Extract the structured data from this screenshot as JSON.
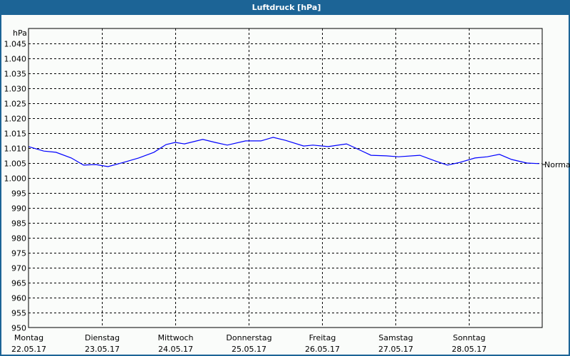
{
  "window": {
    "title": "Luftdruck [hPa]"
  },
  "chart_data": {
    "type": "line",
    "title": "Luftdruck [hPa]",
    "ylabel": "hPa",
    "ylim": [
      950,
      1050
    ],
    "yticks": [
      950,
      955,
      960,
      965,
      970,
      975,
      980,
      985,
      990,
      995,
      1000,
      1005,
      1010,
      1015,
      1020,
      1025,
      1030,
      1035,
      1040,
      1045
    ],
    "ytick_labels": [
      "950",
      "955",
      "960",
      "965",
      "970",
      "975",
      "980",
      "985",
      "990",
      "995",
      "1.000",
      "1.005",
      "1.010",
      "1.015",
      "1.020",
      "1.025",
      "1.030",
      "1.035",
      "1.040",
      "1.045"
    ],
    "xlim": [
      "2017-05-22T00:00",
      "2017-05-29T00:00"
    ],
    "xticks": [
      {
        "day": "Montag",
        "date": "22.05.17"
      },
      {
        "day": "Dienstag",
        "date": "23.05.17"
      },
      {
        "day": "Mittwoch",
        "date": "24.05.17"
      },
      {
        "day": "Donnerstag",
        "date": "25.05.17"
      },
      {
        "day": "Freitag",
        "date": "26.05.17"
      },
      {
        "day": "Samstag",
        "date": "27.05.17"
      },
      {
        "day": "Sonntag",
        "date": "28.05.17"
      }
    ],
    "grid": true,
    "reference_line": {
      "label": "Normal",
      "value": 1005
    },
    "series": [
      {
        "color": "#0000ff",
        "points": [
          [
            "2017-05-22T00:00",
            1010.5
          ],
          [
            "2017-05-22T05:00",
            1009.0
          ],
          [
            "2017-05-22T09:00",
            1008.6
          ],
          [
            "2017-05-22T14:00",
            1006.7
          ],
          [
            "2017-05-22T18:00",
            1004.3
          ],
          [
            "2017-05-22T22:00",
            1004.5
          ],
          [
            "2017-05-23T02:00",
            1003.8
          ],
          [
            "2017-05-23T07:00",
            1005.2
          ],
          [
            "2017-05-23T12:00",
            1006.7
          ],
          [
            "2017-05-23T17:00",
            1008.6
          ],
          [
            "2017-05-23T21:00",
            1011.2
          ],
          [
            "2017-05-24T00:00",
            1011.9
          ],
          [
            "2017-05-24T03:00",
            1011.4
          ],
          [
            "2017-05-24T09:00",
            1012.9
          ],
          [
            "2017-05-24T13:00",
            1011.9
          ],
          [
            "2017-05-24T17:00",
            1011.0
          ],
          [
            "2017-05-24T23:00",
            1012.4
          ],
          [
            "2017-05-25T04:00",
            1012.4
          ],
          [
            "2017-05-25T08:00",
            1013.6
          ],
          [
            "2017-05-25T12:00",
            1012.6
          ],
          [
            "2017-05-25T18:00",
            1010.7
          ],
          [
            "2017-05-25T21:00",
            1011.0
          ],
          [
            "2017-05-26T02:00",
            1010.5
          ],
          [
            "2017-05-26T08:00",
            1011.4
          ],
          [
            "2017-05-26T11:00",
            1010.0
          ],
          [
            "2017-05-26T16:00",
            1007.6
          ],
          [
            "2017-05-26T21:00",
            1007.4
          ],
          [
            "2017-05-27T01:00",
            1007.1
          ],
          [
            "2017-05-27T08:00",
            1007.6
          ],
          [
            "2017-05-27T13:00",
            1005.7
          ],
          [
            "2017-05-27T17:00",
            1004.3
          ],
          [
            "2017-05-27T21:00",
            1005.2
          ],
          [
            "2017-05-28T02:00",
            1006.7
          ],
          [
            "2017-05-28T06:00",
            1007.1
          ],
          [
            "2017-05-28T10:00",
            1007.9
          ],
          [
            "2017-05-28T14:00",
            1006.2
          ],
          [
            "2017-05-28T19:00",
            1005.0
          ],
          [
            "2017-05-28T23:00",
            1004.8
          ]
        ]
      }
    ]
  }
}
